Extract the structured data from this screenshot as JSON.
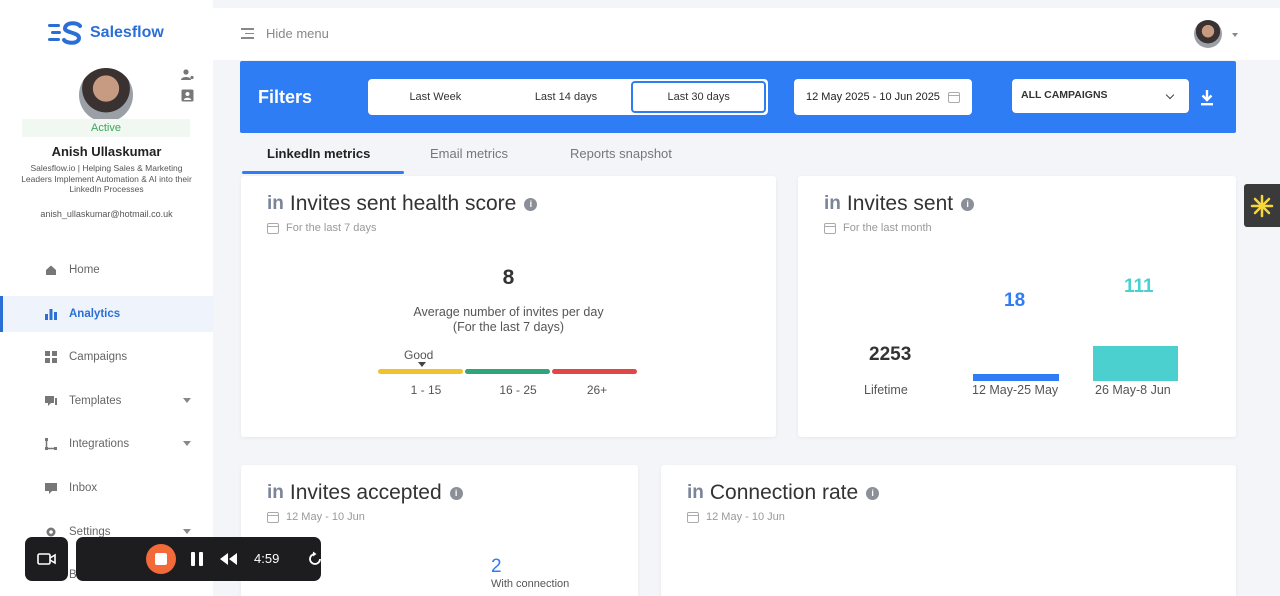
{
  "app": {
    "name": "Salesflow"
  },
  "profile": {
    "status": "Active",
    "name": "Anish Ullaskumar",
    "bio": "Salesflow.io | Helping Sales & Marketing Leaders Implement Automation & AI into their LinkedIn Processes",
    "email": "anish_ullaskumar@hotmail.co.uk"
  },
  "nav": {
    "items": [
      {
        "label": "Home",
        "icon": "home-icon"
      },
      {
        "label": "Analytics",
        "icon": "bar-chart-icon",
        "active": true
      },
      {
        "label": "Campaigns",
        "icon": "grid-icon"
      },
      {
        "label": "Templates",
        "icon": "message-icon",
        "expandable": true
      },
      {
        "label": "Integrations",
        "icon": "integration-icon",
        "expandable": true
      },
      {
        "label": "Inbox",
        "icon": "inbox-icon"
      },
      {
        "label": "Settings",
        "icon": "gear-icon",
        "expandable": true
      },
      {
        "label": "Bla",
        "icon": "block-icon"
      }
    ]
  },
  "topbar": {
    "hide_menu_label": "Hide menu"
  },
  "filters": {
    "title": "Filters",
    "ranges": [
      "Last Week",
      "Last 14 days",
      "Last 30 days"
    ],
    "selected_range": "Last 30 days",
    "date_range": "12 May 2025 - 10 Jun 2025",
    "campaign": "ALL CAMPAIGNS"
  },
  "tabs": [
    "LinkedIn metrics",
    "Email metrics",
    "Reports snapshot"
  ],
  "health_card": {
    "in": "in",
    "title": "Invites sent health score",
    "info": "i",
    "period": "For the last 7 days",
    "value": "8",
    "desc_line1": "Average number of invites per day",
    "desc_line2": "(For the last 7 days)",
    "indicator": "Good",
    "bands": [
      "1 - 15",
      "16 - 25",
      "26+"
    ],
    "band_colors": [
      "#f2c12e",
      "#2fa57a",
      "#e04848"
    ]
  },
  "invites_card": {
    "in": "in",
    "title": "Invites sent",
    "info": "i",
    "period": "For the last month",
    "lifetime_value": "2253",
    "lifetime_label": "Lifetime",
    "period1_value": "18",
    "period1_label": "12 May-25 May",
    "period1_color": "#2f7df4",
    "period2_value": "111",
    "period2_label": "26 May-8 Jun",
    "period2_color": "#4ccfcf"
  },
  "accepted_card": {
    "in": "in",
    "title": "Invites accepted",
    "info": "i",
    "period": "12 May - 10 Jun",
    "value": "2",
    "value_label": "With connection"
  },
  "connection_card": {
    "in": "in",
    "title": "Connection rate",
    "info": "i",
    "period": "12 May - 10 Jun"
  },
  "recorder": {
    "time": "4:59"
  }
}
